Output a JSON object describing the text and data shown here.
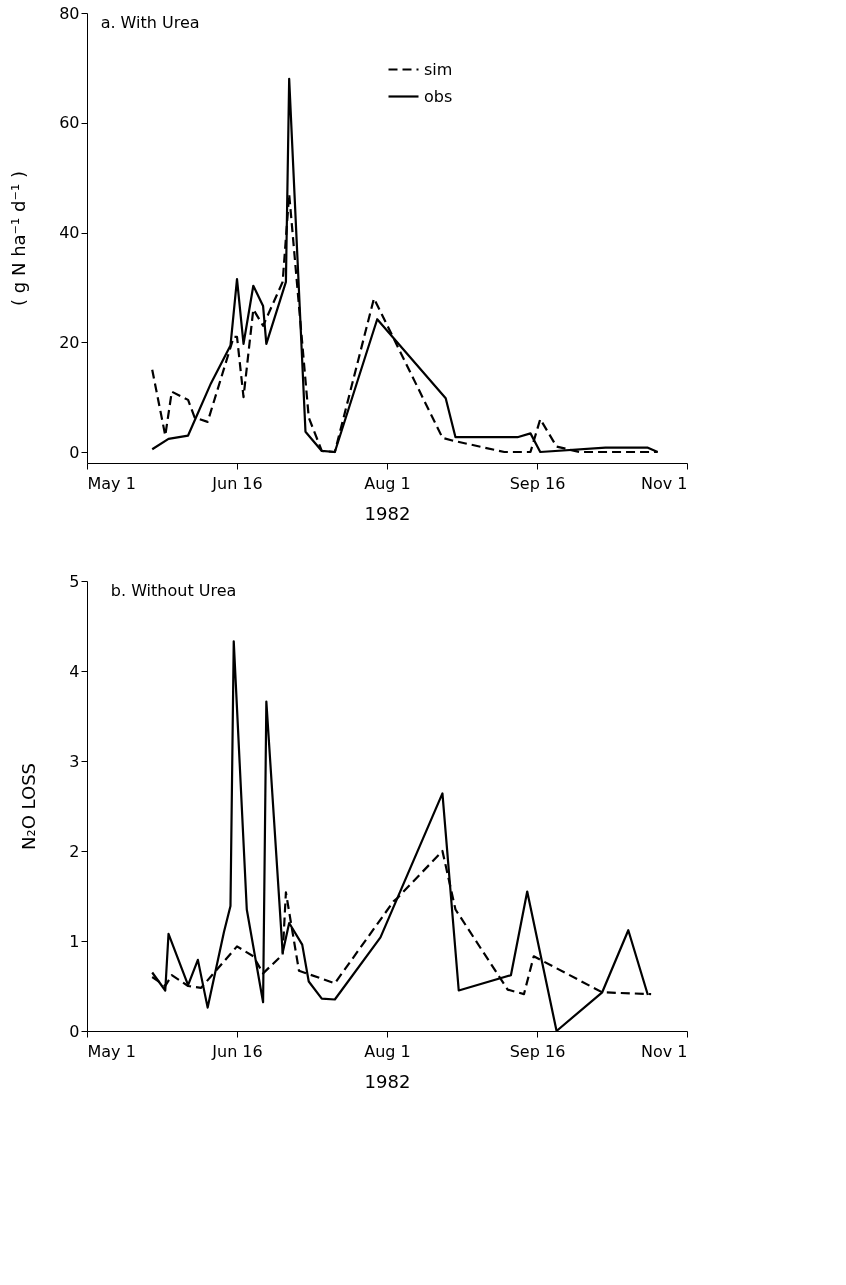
{
  "chart_data": [
    {
      "type": "line",
      "title": "a.  With Urea",
      "xlabel": "1982",
      "ylabel": "( g N ha⁻¹ d⁻¹ )",
      "legend": "top",
      "grid": false,
      "marker": "none",
      "xlim": [
        "1982-05-01",
        "1982-11-01"
      ],
      "xticks": [
        {
          "value": "1982-05-01",
          "label": "May 1"
        },
        {
          "value": "1982-06-16",
          "label": "Jun 16"
        },
        {
          "value": "1982-08-01",
          "label": "Aug 1"
        },
        {
          "value": "1982-09-16",
          "label": "Sep 16"
        },
        {
          "value": "1982-11-01",
          "label": "Nov 1"
        }
      ],
      "ylim": [
        -2,
        80
      ],
      "yticks": [
        0,
        20,
        40,
        60,
        80
      ],
      "series": [
        {
          "name": "sim",
          "color": "#000000",
          "line_style": "dashed",
          "x": [
            "1982-05-21",
            "1982-05-25",
            "1982-05-27",
            "1982-06-01",
            "1982-06-03",
            "1982-06-07",
            "1982-06-15",
            "1982-06-16",
            "1982-06-18",
            "1982-06-21",
            "1982-06-24",
            "1982-06-30",
            "1982-07-02",
            "1982-07-08",
            "1982-07-12",
            "1982-07-16",
            "1982-07-28",
            "1982-08-18",
            "1982-08-21",
            "1982-09-06",
            "1982-09-14",
            "1982-09-17",
            "1982-09-22",
            "1982-09-29",
            "1982-10-23"
          ],
          "values": [
            15,
            3,
            11,
            9.5,
            6.3,
            5.5,
            21,
            21,
            10,
            26,
            23,
            31,
            47,
            6.3,
            0.2,
            0,
            28,
            2.6,
            2.1,
            0,
            0,
            6,
            1,
            0,
            0
          ]
        },
        {
          "name": "obs",
          "color": "#000000",
          "line_style": "solid",
          "x": [
            "1982-05-21",
            "1982-05-26",
            "1982-06-01",
            "1982-06-08",
            "1982-06-14",
            "1982-06-16",
            "1982-06-18",
            "1982-06-21",
            "1982-06-24",
            "1982-06-25",
            "1982-07-01",
            "1982-07-02",
            "1982-07-07",
            "1982-07-12",
            "1982-07-16",
            "1982-07-29",
            "1982-08-19",
            "1982-08-22",
            "1982-09-10",
            "1982-09-14",
            "1982-09-17",
            "1982-10-07",
            "1982-10-20",
            "1982-10-23"
          ],
          "values": [
            0.5,
            2.4,
            3,
            12.5,
            19.4,
            31.5,
            19.7,
            30.3,
            26.6,
            19.7,
            31,
            68,
            3.7,
            0.2,
            0,
            24.2,
            9.8,
            2.7,
            2.7,
            3.4,
            0,
            0.8,
            0.8,
            0
          ]
        }
      ]
    },
    {
      "type": "line",
      "title": "b.  Without Urea",
      "xlabel": "1982",
      "ylabel": "N₂O  LOSS",
      "grid": false,
      "marker": "none",
      "xlim": [
        "1982-05-01",
        "1982-11-01"
      ],
      "xticks": [
        {
          "value": "1982-05-01",
          "label": "May 1"
        },
        {
          "value": "1982-06-16",
          "label": "Jun 16"
        },
        {
          "value": "1982-08-01",
          "label": "Aug 1"
        },
        {
          "value": "1982-09-16",
          "label": "Sep 16"
        },
        {
          "value": "1982-11-01",
          "label": "Nov 1"
        }
      ],
      "ylim": [
        0,
        5
      ],
      "yticks": [
        0,
        1,
        2,
        3,
        4,
        5
      ],
      "series": [
        {
          "color": "#000000",
          "line_style": "dashed",
          "x": [
            "1982-05-21",
            "1982-05-25",
            "1982-05-27",
            "1982-06-01",
            "1982-06-05",
            "1982-06-16",
            "1982-06-21",
            "1982-06-24",
            "1982-06-30",
            "1982-07-01",
            "1982-07-05",
            "1982-07-16",
            "1982-08-03",
            "1982-08-04",
            "1982-08-18",
            "1982-08-22",
            "1982-09-07",
            "1982-09-12",
            "1982-09-15",
            "1982-10-06",
            "1982-10-21"
          ],
          "values": [
            0.6,
            0.5,
            0.62,
            0.5,
            0.48,
            0.94,
            0.83,
            0.64,
            0.85,
            1.54,
            0.67,
            0.53,
            1.44,
            1.47,
            2.0,
            1.35,
            0.46,
            0.41,
            0.83,
            0.43,
            0.41
          ]
        },
        {
          "color": "#000000",
          "line_style": "solid",
          "x": [
            "1982-05-21",
            "1982-05-25",
            "1982-05-26",
            "1982-06-01",
            "1982-06-04",
            "1982-06-07",
            "1982-06-12",
            "1982-06-14",
            "1982-06-15",
            "1982-06-19",
            "1982-06-24",
            "1982-06-25",
            "1982-06-30",
            "1982-07-02",
            "1982-07-06",
            "1982-07-08",
            "1982-07-12",
            "1982-07-16",
            "1982-07-30",
            "1982-08-18",
            "1982-08-23",
            "1982-09-08",
            "1982-09-13",
            "1982-09-22",
            "1982-10-06",
            "1982-10-14",
            "1982-10-20"
          ],
          "values": [
            0.65,
            0.45,
            1.08,
            0.51,
            0.79,
            0.26,
            1.1,
            1.39,
            4.33,
            1.35,
            0.32,
            3.66,
            0.87,
            1.2,
            0.96,
            0.55,
            0.36,
            0.35,
            1.04,
            2.64,
            0.45,
            0.62,
            1.55,
            0,
            0.43,
            1.12,
            0.4
          ]
        }
      ]
    }
  ]
}
